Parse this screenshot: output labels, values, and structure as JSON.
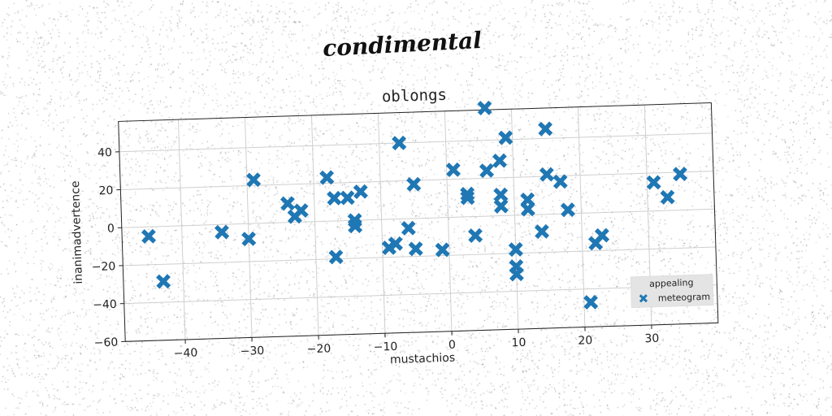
{
  "main_title": "condimental",
  "colors": {
    "marker": "#1f77b4",
    "grid": "#cfcfcf",
    "legend_bg": "#e4e4e4",
    "noise": "#555555"
  },
  "chart_data": {
    "type": "scatter",
    "title": "oblongs",
    "xlabel": "mustachios",
    "ylabel": "inanimadvertence",
    "xlim": [
      -49,
      40
    ],
    "ylim": [
      -60,
      56
    ],
    "xticks": [
      -40,
      -30,
      -20,
      -10,
      0,
      10,
      20,
      30
    ],
    "yticks": [
      -60,
      -40,
      -20,
      0,
      20,
      40
    ],
    "grid": true,
    "marker": "X",
    "legend": {
      "title": "appealing",
      "position": "lower-right",
      "entries": [
        "meteogram"
      ]
    },
    "series": [
      {
        "name": "meteogram",
        "points": [
          [
            -45,
            -5
          ],
          [
            -43,
            -29
          ],
          [
            -34,
            -4
          ],
          [
            -30,
            -8
          ],
          [
            -29,
            23
          ],
          [
            -24,
            10
          ],
          [
            -23,
            3
          ],
          [
            -22,
            6
          ],
          [
            -18,
            23
          ],
          [
            -17,
            12
          ],
          [
            -17,
            -19
          ],
          [
            -15,
            12
          ],
          [
            -14,
            0
          ],
          [
            -14,
            -3
          ],
          [
            -13,
            15
          ],
          [
            -9,
            -15
          ],
          [
            -8,
            -13
          ],
          [
            -7,
            40
          ],
          [
            -6,
            -5
          ],
          [
            -5,
            -16
          ],
          [
            -5,
            18
          ],
          [
            -1,
            -17
          ],
          [
            1,
            25
          ],
          [
            3,
            10
          ],
          [
            3,
            12
          ],
          [
            4,
            -10
          ],
          [
            6,
            24
          ],
          [
            6,
            57
          ],
          [
            8,
            29
          ],
          [
            8,
            11
          ],
          [
            8,
            5
          ],
          [
            9,
            41
          ],
          [
            10,
            -18
          ],
          [
            10,
            -27
          ],
          [
            10,
            -31
          ],
          [
            12,
            8
          ],
          [
            12,
            3
          ],
          [
            14,
            -9
          ],
          [
            15,
            45
          ],
          [
            15,
            21
          ],
          [
            17,
            17
          ],
          [
            18,
            2
          ],
          [
            21,
            -47
          ],
          [
            22,
            -16
          ],
          [
            23,
            -12
          ],
          [
            31,
            15
          ],
          [
            33,
            7
          ],
          [
            35,
            19
          ]
        ]
      }
    ]
  }
}
